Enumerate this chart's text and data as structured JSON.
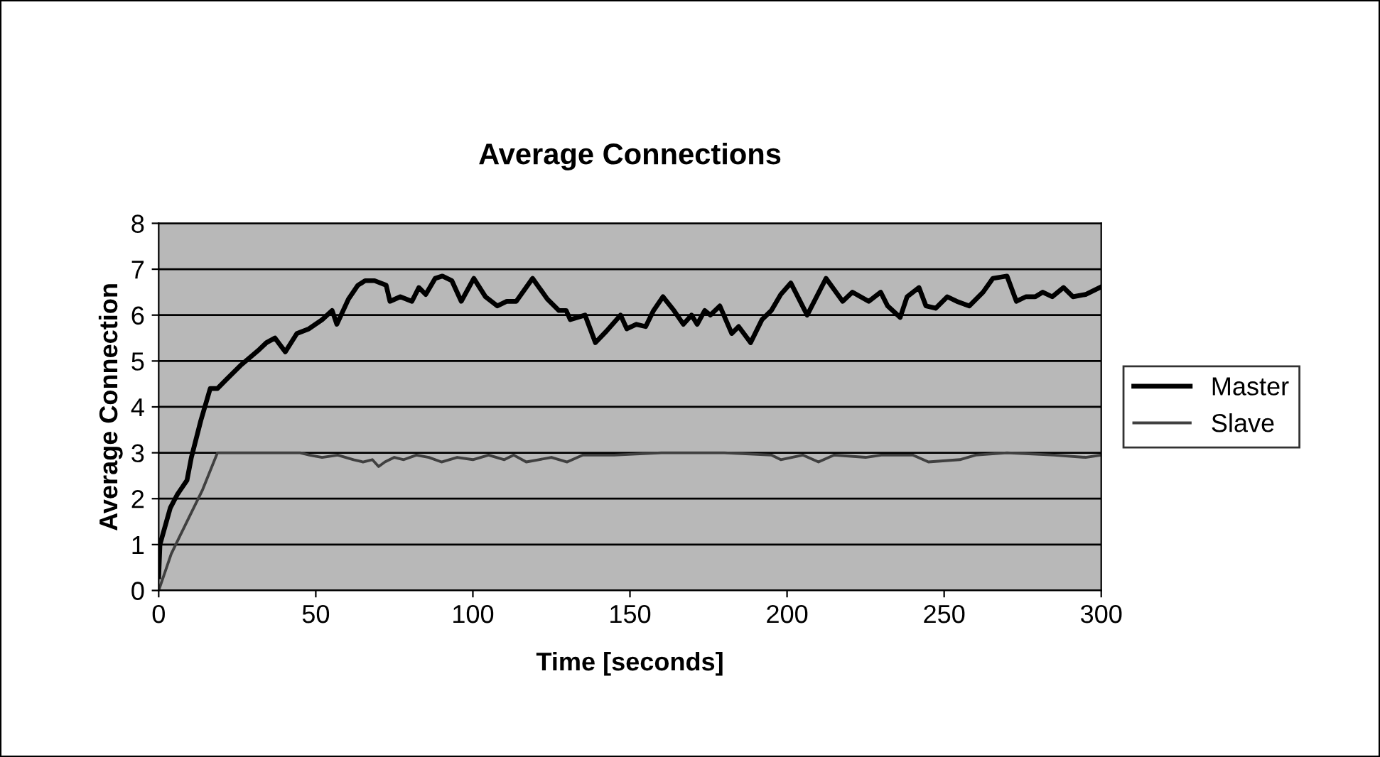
{
  "chart_data": {
    "type": "line",
    "title": "Average Connections",
    "xlabel": "Time [seconds]",
    "ylabel": "Average Connection",
    "xlim": [
      0,
      300
    ],
    "xticks": [
      0,
      50,
      100,
      150,
      200,
      250,
      300
    ],
    "ylim": [
      0,
      8
    ],
    "yticks": [
      0,
      1,
      2,
      3,
      4,
      5,
      6,
      7,
      8
    ],
    "grid": "y",
    "legend": "right",
    "marker": "none",
    "line_style": "solid",
    "series": [
      {
        "name": "Master",
        "color": "#000000",
        "x": [
          0,
          0.4,
          3.7,
          6,
          9,
          10.4,
          13.4,
          16.4,
          18.7,
          21.6,
          26,
          32,
          34.3,
          37,
          40.3,
          44,
          47.8,
          52,
          55.2,
          56.7,
          60.4,
          63.4,
          65.7,
          68.7,
          72.4,
          73.6,
          76.9,
          80.6,
          82.8,
          85,
          88,
          90.3,
          93.3,
          96.3,
          100.3,
          104,
          107.8,
          110.8,
          113.8,
          119,
          123.7,
          127.4,
          129.7,
          131,
          135.7,
          139,
          142.5,
          147,
          149,
          152,
          155,
          157.5,
          160.5,
          164,
          167,
          169.6,
          171.4,
          173.8,
          175.6,
          178.6,
          182.4,
          184.6,
          188.4,
          192,
          195,
          198,
          201.2,
          206.4,
          212.4,
          217.7,
          220.8,
          226,
          229.8,
          232,
          236,
          238.2,
          242,
          244.2,
          247.3,
          251,
          254,
          258,
          262.4,
          265.5,
          270,
          273,
          276,
          279,
          281.4,
          284.4,
          288,
          291,
          295,
          299.5
        ],
        "values": [
          0.3,
          1.0,
          1.8,
          2.1,
          2.4,
          2.9,
          3.7,
          4.4,
          4.4,
          4.6,
          4.9,
          5.25,
          5.4,
          5.5,
          5.2,
          5.6,
          5.7,
          5.9,
          6.1,
          5.8,
          6.35,
          6.65,
          6.75,
          6.75,
          6.65,
          6.3,
          6.4,
          6.3,
          6.6,
          6.45,
          6.8,
          6.85,
          6.75,
          6.3,
          6.8,
          6.4,
          6.2,
          6.3,
          6.3,
          6.8,
          6.35,
          6.1,
          6.1,
          5.9,
          6.0,
          5.4,
          5.65,
          6.0,
          5.7,
          5.8,
          5.75,
          6.1,
          6.4,
          6.1,
          5.8,
          6.0,
          5.8,
          6.1,
          6.0,
          6.2,
          5.6,
          5.75,
          5.4,
          5.9,
          6.1,
          6.45,
          6.7,
          6.0,
          6.8,
          6.3,
          6.5,
          6.3,
          6.5,
          6.2,
          5.95,
          6.4,
          6.6,
          6.2,
          6.15,
          6.4,
          6.3,
          6.2,
          6.5,
          6.8,
          6.85,
          6.3,
          6.4,
          6.4,
          6.5,
          6.4,
          6.6,
          6.4,
          6.45,
          6.6
        ]
      },
      {
        "name": "Slave",
        "color": "#404040",
        "x": [
          0,
          4,
          9.7,
          14,
          18.7,
          25,
          45,
          48,
          52,
          57,
          62,
          65,
          68,
          70,
          72,
          75,
          78,
          82,
          86,
          90,
          95,
          100,
          105,
          110,
          113,
          117,
          121,
          125,
          130,
          135,
          145,
          160,
          180,
          195,
          198,
          205,
          210,
          215,
          225,
          230,
          240,
          245,
          255,
          260,
          270,
          285,
          295,
          300
        ],
        "values": [
          0,
          0.8,
          1.6,
          2.2,
          3.0,
          3.0,
          3.0,
          2.95,
          2.9,
          2.95,
          2.85,
          2.8,
          2.85,
          2.7,
          2.8,
          2.9,
          2.85,
          2.95,
          2.9,
          2.8,
          2.9,
          2.85,
          2.95,
          2.85,
          2.95,
          2.8,
          2.85,
          2.9,
          2.8,
          2.95,
          2.95,
          3.0,
          3.0,
          2.95,
          2.85,
          2.95,
          2.8,
          2.95,
          2.9,
          2.95,
          2.95,
          2.8,
          2.85,
          2.95,
          3.0,
          2.95,
          2.9,
          2.95
        ]
      }
    ]
  }
}
